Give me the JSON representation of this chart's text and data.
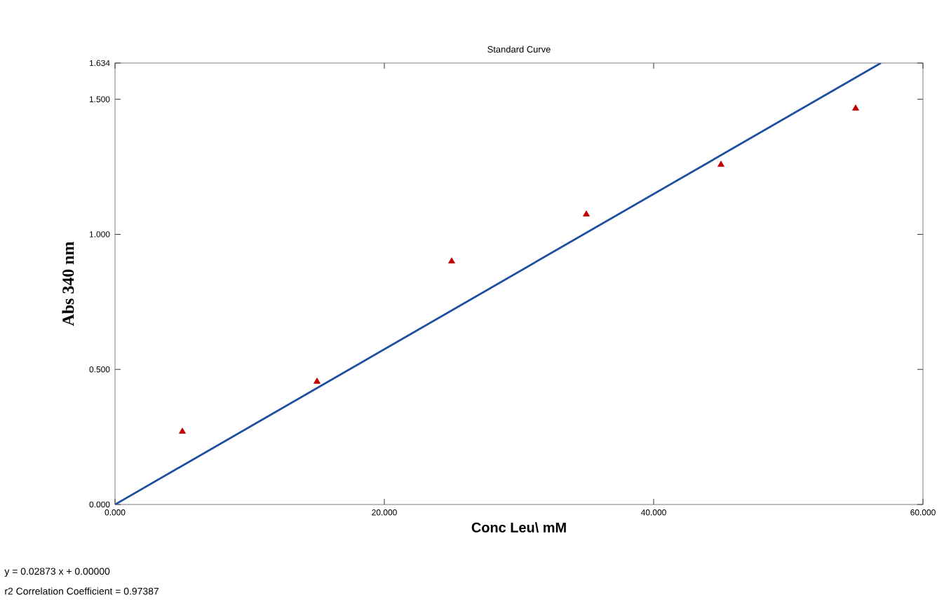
{
  "chart_data": {
    "type": "scatter",
    "title": "Standard Curve",
    "xlabel": "Conc Leu\\ mM",
    "ylabel": "Abs   340 nm",
    "annotations": [
      "y = 0.02873 x + 0.00000",
      "r2 Correlation Coefficient = 0.97387"
    ],
    "xlim": [
      0,
      60
    ],
    "ylim": [
      0,
      1.634
    ],
    "xticks": [
      {
        "value": 0,
        "label": "0.000"
      },
      {
        "value": 20,
        "label": "20.000"
      },
      {
        "value": 40,
        "label": "40.000"
      },
      {
        "value": 60,
        "label": "60.000"
      }
    ],
    "yticks": [
      {
        "value": 0,
        "label": "0.000"
      },
      {
        "value": 0.5,
        "label": "0.500"
      },
      {
        "value": 1.0,
        "label": "1.000"
      },
      {
        "value": 1.5,
        "label": "1.500"
      },
      {
        "value": 1.634,
        "label": "1.634"
      }
    ],
    "grid": false,
    "series": [
      {
        "color": "#c00000",
        "marker": "triangle",
        "x": [
          5,
          15,
          25,
          35,
          45,
          55
        ],
        "values": [
          0.27,
          0.455,
          0.9,
          1.074,
          1.258,
          1.466
        ]
      },
      {
        "type": "line",
        "color": "#1f4fa0",
        "marker": "none",
        "line_style": "solid",
        "x": [
          0,
          56.87
        ],
        "values": [
          0,
          1.634
        ]
      }
    ]
  }
}
